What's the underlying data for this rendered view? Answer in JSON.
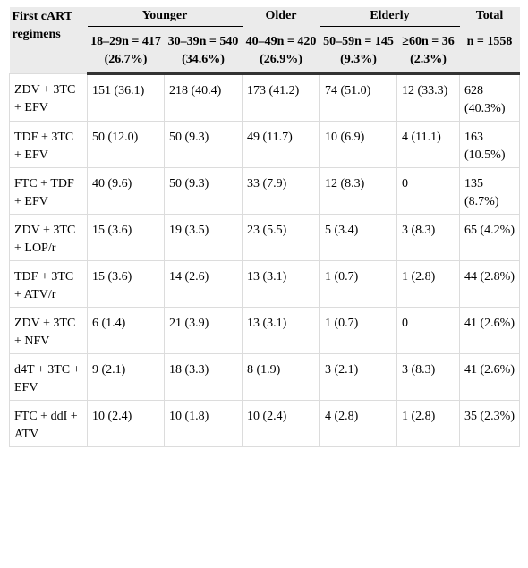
{
  "table": {
    "header": {
      "first": "First cART regimens",
      "groups": [
        "Younger",
        "Older",
        "Elderly",
        "Total"
      ],
      "columns": [
        "18–29n = 417 (26.7%)",
        "30–39n = 540 (34.6%)",
        "40–49n = 420 (26.9%)",
        "50–59n = 145 (9.3%)",
        "≥60n = 36 (2.3%)",
        "n = 1558"
      ]
    },
    "rows": [
      [
        "ZDV + 3TC + EFV",
        "151 (36.1)",
        "218 (40.4)",
        "173 (41.2)",
        "74 (51.0)",
        "12 (33.3)",
        "628 (40.3%)"
      ],
      [
        "TDF + 3TC + EFV",
        "50 (12.0)",
        "50 (9.3)",
        "49 (11.7)",
        "10 (6.9)",
        "4 (11.1)",
        "163 (10.5%)"
      ],
      [
        "FTC + TDF + EFV",
        "40 (9.6)",
        "50 (9.3)",
        "33 (7.9)",
        "12 (8.3)",
        "0",
        "135 (8.7%)"
      ],
      [
        "ZDV + 3TC + LOP/r",
        "15 (3.6)",
        "19 (3.5)",
        "23 (5.5)",
        "5 (3.4)",
        "3 (8.3)",
        "65 (4.2%)"
      ],
      [
        "TDF + 3TC + ATV/r",
        "15 (3.6)",
        "14 (2.6)",
        "13 (3.1)",
        "1 (0.7)",
        "1 (2.8)",
        "44 (2.8%)"
      ],
      [
        "ZDV + 3TC + NFV",
        "6 (1.4)",
        "21 (3.9)",
        "13 (3.1)",
        "1 (0.7)",
        "0",
        "41 (2.6%)"
      ],
      [
        "d4T + 3TC + EFV",
        "9 (2.1)",
        "18 (3.3)",
        "8 (1.9)",
        "3 (2.1)",
        "3 (8.3)",
        "41 (2.6%)"
      ],
      [
        "FTC + ddI + ATV",
        "10 (2.4)",
        "10 (1.8)",
        "10 (2.4)",
        "4 (2.8)",
        "1 (2.8)",
        "35 (2.3%)"
      ]
    ]
  }
}
